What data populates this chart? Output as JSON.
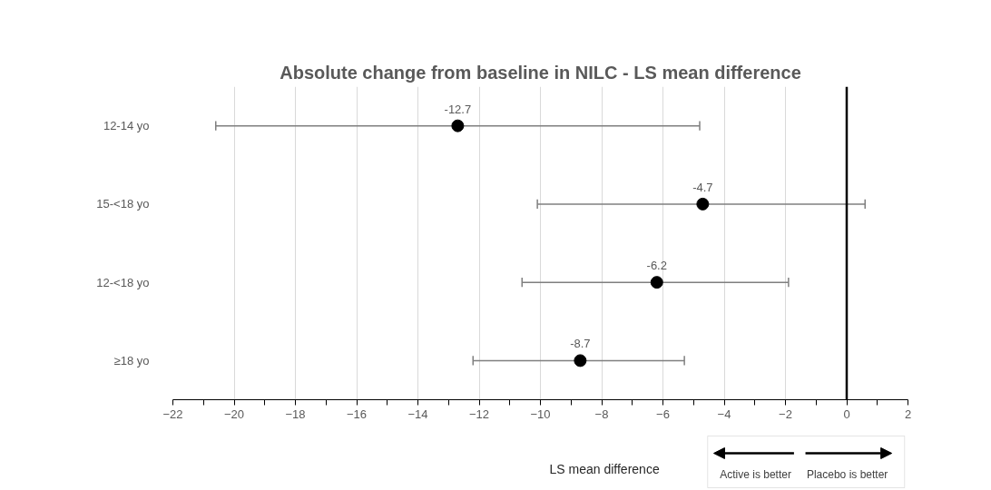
{
  "chart_data": {
    "type": "scatter",
    "orientation": "horizontal",
    "title": "Absolute change from baseline in NILC - LS mean difference",
    "xlabel": "LS mean difference",
    "categories": [
      "12-14 yo",
      "15-<18 yo",
      "12-<18 yo",
      "≥18 yo"
    ],
    "series": [
      {
        "color": "#000000",
        "values": [
          -12.7,
          -4.7,
          -6.2,
          -8.7
        ],
        "errors": [
          [
            -20.6,
            -4.8
          ],
          [
            -10.1,
            0.6
          ],
          [
            -10.6,
            -1.9
          ],
          [
            -12.2,
            -5.3
          ]
        ]
      }
    ],
    "marker": "circle",
    "data_labels": true,
    "grid": "x",
    "xlim": [
      -22,
      2
    ],
    "xticks": [
      -22,
      {
        "value": -21,
        "label": null
      },
      -20,
      {
        "value": -19,
        "label": null
      },
      -18,
      {
        "value": -17,
        "label": null
      },
      -16,
      {
        "value": -15,
        "label": null
      },
      -14,
      {
        "value": -13,
        "label": null
      },
      -12,
      {
        "value": -11,
        "label": null
      },
      -10,
      {
        "value": -9,
        "label": null
      },
      -8,
      {
        "value": -7,
        "label": null
      },
      -6,
      {
        "value": -5,
        "label": null
      },
      -4,
      {
        "value": -3,
        "label": null
      },
      -2,
      {
        "value": -1,
        "label": null
      },
      0,
      {
        "value": 1,
        "label": null
      },
      2
    ],
    "ref_lines": [
      {
        "axis": "x",
        "value": 0,
        "color": "#000000"
      }
    ],
    "annotations": [
      "Active is better",
      "Placebo is better"
    ]
  }
}
